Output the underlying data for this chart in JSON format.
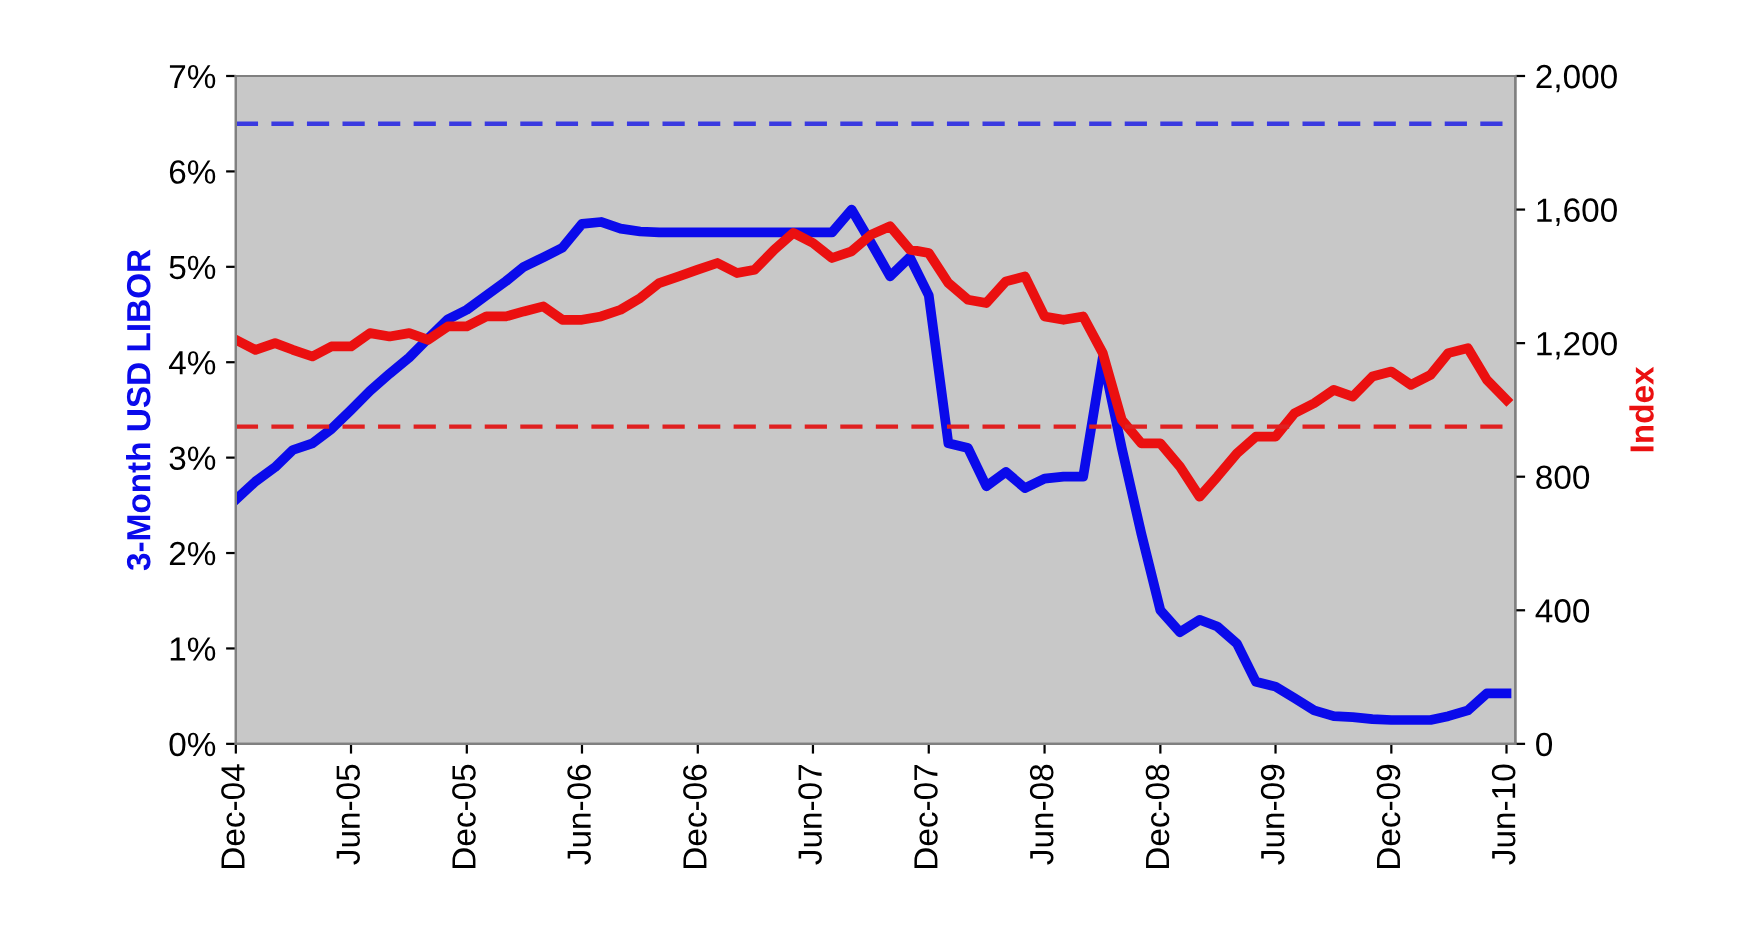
{
  "chart_data": {
    "type": "line",
    "ylabel": "3-Month USD LIBOR",
    "y2label": "Index",
    "x": [
      "2004-12",
      "2005-01",
      "2005-02",
      "2005-03",
      "2005-04",
      "2005-05",
      "2005-06",
      "2005-07",
      "2005-08",
      "2005-09",
      "2005-10",
      "2005-11",
      "2005-12",
      "2006-01",
      "2006-02",
      "2006-03",
      "2006-04",
      "2006-05",
      "2006-06",
      "2006-07",
      "2006-08",
      "2006-09",
      "2006-10",
      "2006-11",
      "2006-12",
      "2007-01",
      "2007-02",
      "2007-03",
      "2007-04",
      "2007-05",
      "2007-06",
      "2007-07",
      "2007-08",
      "2007-09",
      "2007-10",
      "2007-11",
      "2007-12",
      "2008-01",
      "2008-02",
      "2008-03",
      "2008-04",
      "2008-05",
      "2008-06",
      "2008-07",
      "2008-08",
      "2008-09",
      "2008-10",
      "2008-11",
      "2008-12",
      "2009-01",
      "2009-02",
      "2009-03",
      "2009-04",
      "2009-05",
      "2009-06",
      "2009-07",
      "2009-08",
      "2009-09",
      "2009-10",
      "2009-11",
      "2009-12",
      "2010-01",
      "2010-02",
      "2010-03",
      "2010-04",
      "2010-05",
      "2010-06"
    ],
    "series": [
      {
        "color": "#0a0aeb",
        "values": [
          2.56,
          2.75,
          2.9,
          3.08,
          3.15,
          3.3,
          3.5,
          3.7,
          3.88,
          4.05,
          4.25,
          4.45,
          4.55,
          4.7,
          4.85,
          5.0,
          5.1,
          5.2,
          5.45,
          5.47,
          5.4,
          5.37,
          5.36,
          5.36,
          5.36,
          5.36,
          5.36,
          5.36,
          5.36,
          5.36,
          5.36,
          5.36,
          5.6,
          5.25,
          4.9,
          5.1,
          4.7,
          3.15,
          3.1,
          2.7,
          2.85,
          2.68,
          2.78,
          2.8,
          2.8,
          4.05,
          3.1,
          2.2,
          1.4,
          1.17,
          1.3,
          1.23,
          1.05,
          0.65,
          0.6,
          0.48,
          0.35,
          0.29,
          0.28,
          0.26,
          0.25,
          0.25,
          0.25,
          0.29,
          0.35,
          0.53,
          0.53
        ]
      },
      {
        "color": "#eb1010",
        "axis": "y2",
        "values": [
          1210,
          1180,
          1200,
          1180,
          1160,
          1190,
          1190,
          1230,
          1220,
          1230,
          1210,
          1250,
          1250,
          1280,
          1280,
          1295,
          1310,
          1270,
          1270,
          1280,
          1300,
          1335,
          1380,
          1400,
          1420,
          1440,
          1410,
          1420,
          1480,
          1530,
          1500,
          1455,
          1475,
          1525,
          1550,
          1480,
          1470,
          1380,
          1330,
          1320,
          1385,
          1400,
          1280,
          1270,
          1280,
          1170,
          970,
          900,
          900,
          830,
          740,
          800,
          870,
          920,
          920,
          990,
          1020,
          1060,
          1040,
          1100,
          1115,
          1075,
          1105,
          1170,
          1185,
          1090,
          1030
        ]
      }
    ],
    "xlim": [
      "2004-12",
      "2010-06-15"
    ],
    "xticks": [
      {
        "value": "2004-12",
        "label": "Dec-04"
      },
      {
        "value": "2005-06",
        "label": "Jun-05"
      },
      {
        "value": "2005-12",
        "label": "Dec-05"
      },
      {
        "value": "2006-06",
        "label": "Jun-06"
      },
      {
        "value": "2006-12",
        "label": "Dec-06"
      },
      {
        "value": "2007-06",
        "label": "Jun-07"
      },
      {
        "value": "2007-12",
        "label": "Dec-07"
      },
      {
        "value": "2008-06",
        "label": "Jun-08"
      },
      {
        "value": "2008-12",
        "label": "Dec-08"
      },
      {
        "value": "2009-06",
        "label": "Jun-09"
      },
      {
        "value": "2009-12",
        "label": "Dec-09"
      },
      {
        "value": "2010-06",
        "label": "Jun-10"
      }
    ],
    "ylim": [
      0,
      7
    ],
    "yticks": [
      {
        "value": 0,
        "label": "0%"
      },
      {
        "value": 1,
        "label": "1%"
      },
      {
        "value": 2,
        "label": "2%"
      },
      {
        "value": 3,
        "label": "3%"
      },
      {
        "value": 4,
        "label": "4%"
      },
      {
        "value": 5,
        "label": "5%"
      },
      {
        "value": 6,
        "label": "6%"
      },
      {
        "value": 7,
        "label": "7%"
      }
    ],
    "y2lim": [
      0,
      2000
    ],
    "y2ticks": [
      0,
      400,
      800,
      {
        "value": 1200,
        "label": "1,200"
      },
      {
        "value": 1600,
        "label": "1,600"
      },
      {
        "value": 2000,
        "label": "2,000"
      }
    ],
    "ref_lines": [
      {
        "axis": "y",
        "value": 6.5,
        "color": "#3a3ae0",
        "line_style": "dashed"
      },
      {
        "axis": "y2",
        "value": 950,
        "color": "#e02020",
        "line_style": "dashed"
      }
    ],
    "grid": false,
    "legend": false
  }
}
